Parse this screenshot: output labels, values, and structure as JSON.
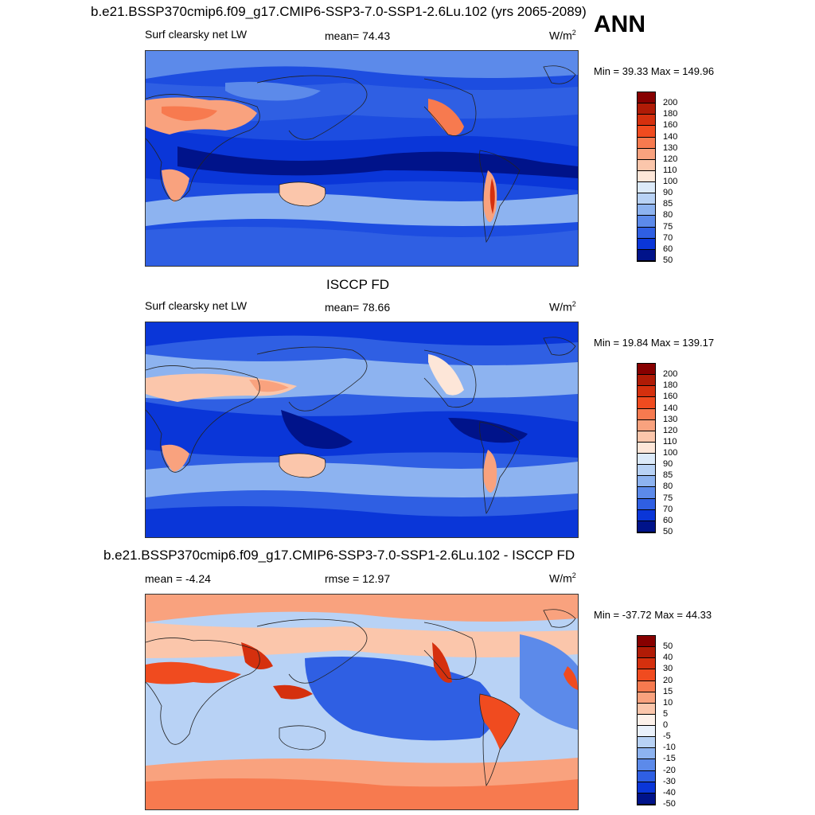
{
  "header": {
    "title": "b.e21.BSSP370cmip6.f09_g17.CMIP6-SSP3-7.0-SSP1-2.6Lu.102 (yrs 2065-2089)",
    "season": "ANN"
  },
  "panels": [
    {
      "id": "model",
      "title": "",
      "variable": "Surf clearsky net LW",
      "stat": "mean=  74.43",
      "units": "W/m",
      "units_exp": "2",
      "minmax": "Min =  39.33 Max = 149.96",
      "cbar_labels": [
        "200",
        "180",
        "160",
        "140",
        "130",
        "120",
        "110",
        "100",
        "90",
        "85",
        "80",
        "75",
        "70",
        "60",
        "50"
      ]
    },
    {
      "id": "obs",
      "title": "ISCCP FD",
      "variable": "Surf clearsky net LW",
      "stat": "mean=  78.66",
      "units": "W/m",
      "units_exp": "2",
      "minmax": "Min =  19.84 Max = 139.17",
      "cbar_labels": [
        "200",
        "180",
        "160",
        "140",
        "130",
        "120",
        "110",
        "100",
        "90",
        "85",
        "80",
        "75",
        "70",
        "60",
        "50"
      ]
    },
    {
      "id": "diff",
      "title": "b.e21.BSSP370cmip6.f09_g17.CMIP6-SSP3-7.0-SSP1-2.6Lu.102 - ISCCP FD",
      "variable": "mean =  -4.24",
      "stat": "rmse =  12.97",
      "units": "W/m",
      "units_exp": "2",
      "minmax": "Min = -37.72 Max =  44.33",
      "cbar_labels": [
        "50",
        "40",
        "30",
        "20",
        "15",
        "10",
        "5",
        "0",
        "-5",
        "-10",
        "-15",
        "-20",
        "-30",
        "-40",
        "-50"
      ]
    }
  ],
  "colors": {
    "abs_scale": [
      "#870000",
      "#b01b06",
      "#d5300e",
      "#f04b1f",
      "#f77a4f",
      "#f9a27e",
      "#fbc6ab",
      "#fde6d8",
      "#dceaf9",
      "#b8d2f5",
      "#8db3f0",
      "#5c8aea",
      "#2f5fe3",
      "#0a36d8",
      "#00138a"
    ],
    "diff_scale": [
      "#870000",
      "#b01b06",
      "#d5300e",
      "#f04b1f",
      "#f77a4f",
      "#f9a27e",
      "#fbc6ab",
      "#fdf1ea",
      "#eaf1fb",
      "#b8d2f5",
      "#8db3f0",
      "#5c8aea",
      "#2f5fe3",
      "#0a36d8",
      "#00138a"
    ]
  }
}
